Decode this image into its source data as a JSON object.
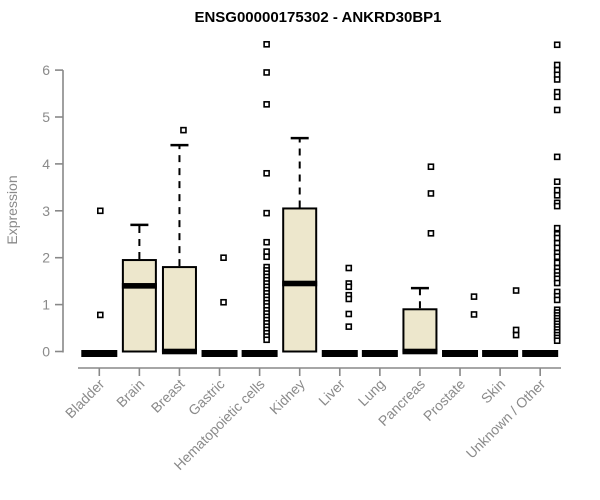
{
  "title": "ENSG00000175302 - ANKRD30BP1",
  "chart_data": {
    "type": "boxplot",
    "title": "ENSG00000175302 - ANKRD30BP1",
    "xlabel": "",
    "ylabel": "Expression",
    "ylim": [
      0,
      6.6
    ],
    "yticks": [
      0,
      1,
      2,
      3,
      4,
      5,
      6
    ],
    "grid": false,
    "legend": "none",
    "categories": [
      "Bladder",
      "Brain",
      "Breast",
      "Gastric",
      "Hematopoietic cells",
      "Kidney",
      "Liver",
      "Lung",
      "Pancreas",
      "Prostate",
      "Skin",
      "Unknown / Other"
    ],
    "boxes": [
      {
        "label": "Bladder",
        "whislo": 0,
        "q1": 0,
        "med": 0,
        "q3": 0,
        "whishi": 0,
        "outliers": [
          3.0,
          0.78
        ],
        "outlier_dx": 1
      },
      {
        "label": "Brain",
        "whislo": 0,
        "q1": 0,
        "med": 1.4,
        "q3": 1.95,
        "whishi": 2.7,
        "outliers": [],
        "outlier_dx": 0
      },
      {
        "label": "Breast",
        "whislo": 0,
        "q1": 0,
        "med": 0,
        "q3": 1.8,
        "whishi": 4.4,
        "outliers": [
          4.72
        ],
        "outlier_dx": 4
      },
      {
        "label": "Gastric",
        "whislo": 0,
        "q1": 0,
        "med": 0,
        "q3": 0,
        "whishi": 0,
        "outliers": [
          2.0,
          1.05
        ],
        "outlier_dx": 4
      },
      {
        "label": "Hematopoietic cells",
        "whislo": 0,
        "q1": 0,
        "med": 0,
        "q3": 0,
        "whishi": 0,
        "outliers": [
          6.55,
          5.95,
          5.27,
          3.8,
          2.95,
          2.33,
          2.13,
          2.02,
          1.8,
          1.73,
          1.66,
          1.59,
          1.52,
          1.45,
          1.38,
          1.31,
          1.24,
          1.17,
          1.1,
          1.03,
          0.96,
          0.88,
          0.81,
          0.74,
          0.67,
          0.6,
          0.53,
          0.46,
          0.39,
          0.32,
          0.25
        ],
        "outlier_dx": 7
      },
      {
        "label": "Kidney",
        "whislo": 0,
        "q1": 0,
        "med": 1.45,
        "q3": 3.05,
        "whishi": 4.55,
        "outliers": [],
        "outlier_dx": 0
      },
      {
        "label": "Liver",
        "whislo": 0,
        "q1": 0,
        "med": 0,
        "q3": 0,
        "whishi": 0,
        "outliers": [
          1.78,
          1.45,
          1.38,
          1.2,
          1.12,
          0.8,
          0.53
        ],
        "outlier_dx": 9
      },
      {
        "label": "Lung",
        "whislo": 0,
        "q1": 0,
        "med": 0,
        "q3": 0,
        "whishi": 0,
        "outliers": [],
        "outlier_dx": 0
      },
      {
        "label": "Pancreas",
        "whislo": 0,
        "q1": 0,
        "med": 0,
        "q3": 0.9,
        "whishi": 1.35,
        "outliers": [
          3.94,
          3.37,
          2.52
        ],
        "outlier_dx": 11
      },
      {
        "label": "Prostate",
        "whislo": 0,
        "q1": 0,
        "med": 0,
        "q3": 0,
        "whishi": 0,
        "outliers": [
          1.17,
          0.79
        ],
        "outlier_dx": 14
      },
      {
        "label": "Skin",
        "whislo": 0,
        "q1": 0,
        "med": 0,
        "q3": 0,
        "whishi": 0,
        "outliers": [
          1.3,
          0.46,
          0.35
        ],
        "outlier_dx": 16
      },
      {
        "label": "Unknown / Other",
        "whislo": 0,
        "q1": 0,
        "med": 0,
        "q3": 0,
        "whishi": 0,
        "outliers": [
          6.54,
          6.11,
          6.0,
          5.9,
          5.8,
          5.53,
          5.43,
          5.15,
          4.15,
          3.62,
          3.44,
          3.33,
          3.17,
          3.1,
          2.63,
          2.5,
          2.42,
          2.31,
          2.21,
          2.1,
          2.02,
          1.89,
          1.78,
          1.7,
          1.62,
          1.55,
          1.46,
          1.27,
          1.18,
          1.1,
          0.89,
          0.83,
          0.77,
          0.71,
          0.65,
          0.59,
          0.53,
          0.47,
          0.41,
          0.35,
          0.29,
          0.23
        ],
        "outlier_dx": 17
      }
    ],
    "colors": {
      "background": "#FFFFFF",
      "box_fill": "#EDE7CC",
      "box_border": "#000000",
      "median": "#000000",
      "whisker": "#000000",
      "outlier_stroke": "#000000",
      "outlier_fill": "#FFFFFF",
      "axis_line": "#888888",
      "tick_text": "#8A8A8A",
      "title_text": "#000000"
    }
  }
}
